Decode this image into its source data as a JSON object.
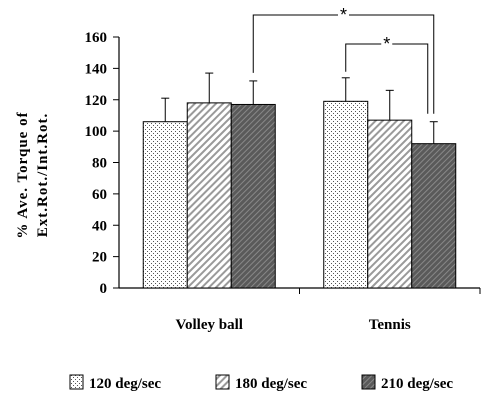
{
  "chart_data": {
    "type": "bar",
    "categories": [
      "Volley ball",
      "Tennis"
    ],
    "series": [
      {
        "name": "120 deg/sec",
        "values": [
          106,
          119
        ],
        "errors": [
          15,
          15
        ],
        "pattern": "dots"
      },
      {
        "name": "180 deg/sec",
        "values": [
          118,
          107
        ],
        "errors": [
          19,
          19
        ],
        "pattern": "hatch"
      },
      {
        "name": "210 deg/sec",
        "values": [
          117,
          92
        ],
        "errors": [
          15,
          14
        ],
        "pattern": "dark"
      }
    ],
    "ylabel_line1": "% Ave. Torque of",
    "ylabel_line2": "Ext.Rot./Int.Rot.",
    "ylim": [
      0,
      160
    ],
    "yticks": [
      0,
      20,
      40,
      60,
      80,
      100,
      120,
      140,
      160
    ],
    "significance": [
      {
        "label": "*",
        "from": "Volley ball / 210 deg/sec",
        "to": "Tennis / 210 deg/sec"
      },
      {
        "label": "*",
        "from": "Tennis / 120 deg/sec",
        "to": "Tennis / 210 deg/sec"
      }
    ],
    "legend_position": "bottom",
    "grid": false
  }
}
